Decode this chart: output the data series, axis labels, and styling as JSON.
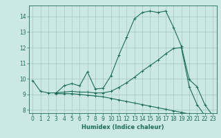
{
  "xlabel": "Humidex (Indice chaleur)",
  "bg_color": "#cce8e4",
  "grid_color": "#aaccc8",
  "line_color": "#1a6b5a",
  "xlim": [
    -0.5,
    23.5
  ],
  "ylim": [
    7.8,
    14.7
  ],
  "xticks": [
    0,
    1,
    2,
    3,
    4,
    5,
    6,
    7,
    8,
    9,
    10,
    11,
    12,
    13,
    14,
    15,
    16,
    17,
    18,
    19,
    20,
    21,
    22,
    23
  ],
  "yticks": [
    8,
    9,
    10,
    11,
    12,
    13,
    14
  ],
  "lines": [
    {
      "x": [
        0,
        1,
        2,
        3,
        4,
        5,
        6,
        7,
        8,
        9,
        10,
        11,
        12,
        13,
        14,
        15,
        16,
        17,
        18,
        19,
        20,
        21,
        22,
        23
      ],
      "y": [
        9.9,
        9.2,
        9.1,
        9.1,
        9.55,
        9.7,
        9.55,
        10.45,
        9.35,
        9.4,
        10.2,
        11.5,
        12.65,
        13.85,
        14.25,
        14.35,
        14.25,
        14.35,
        13.3,
        12.1,
        9.95,
        9.5,
        8.35,
        7.65
      ]
    },
    {
      "x": [
        3,
        4,
        5,
        6,
        7,
        8,
        9,
        10,
        11,
        12,
        13,
        14,
        15,
        16,
        17,
        18,
        19,
        20,
        21,
        22,
        23
      ],
      "y": [
        9.1,
        9.15,
        9.2,
        9.15,
        9.15,
        9.1,
        9.1,
        9.2,
        9.45,
        9.75,
        10.1,
        10.5,
        10.85,
        11.2,
        11.6,
        11.95,
        12.0,
        9.5,
        8.35,
        7.65,
        7.65
      ]
    },
    {
      "x": [
        3,
        4,
        5,
        6,
        7,
        8,
        9,
        10,
        11,
        12,
        13,
        14,
        15,
        16,
        17,
        18,
        19,
        20,
        21,
        22,
        23
      ],
      "y": [
        9.05,
        9.05,
        9.05,
        9.0,
        8.95,
        8.9,
        8.85,
        8.75,
        8.65,
        8.55,
        8.45,
        8.35,
        8.25,
        8.15,
        8.05,
        7.95,
        7.85,
        7.75,
        7.65,
        7.6,
        7.55
      ]
    }
  ]
}
